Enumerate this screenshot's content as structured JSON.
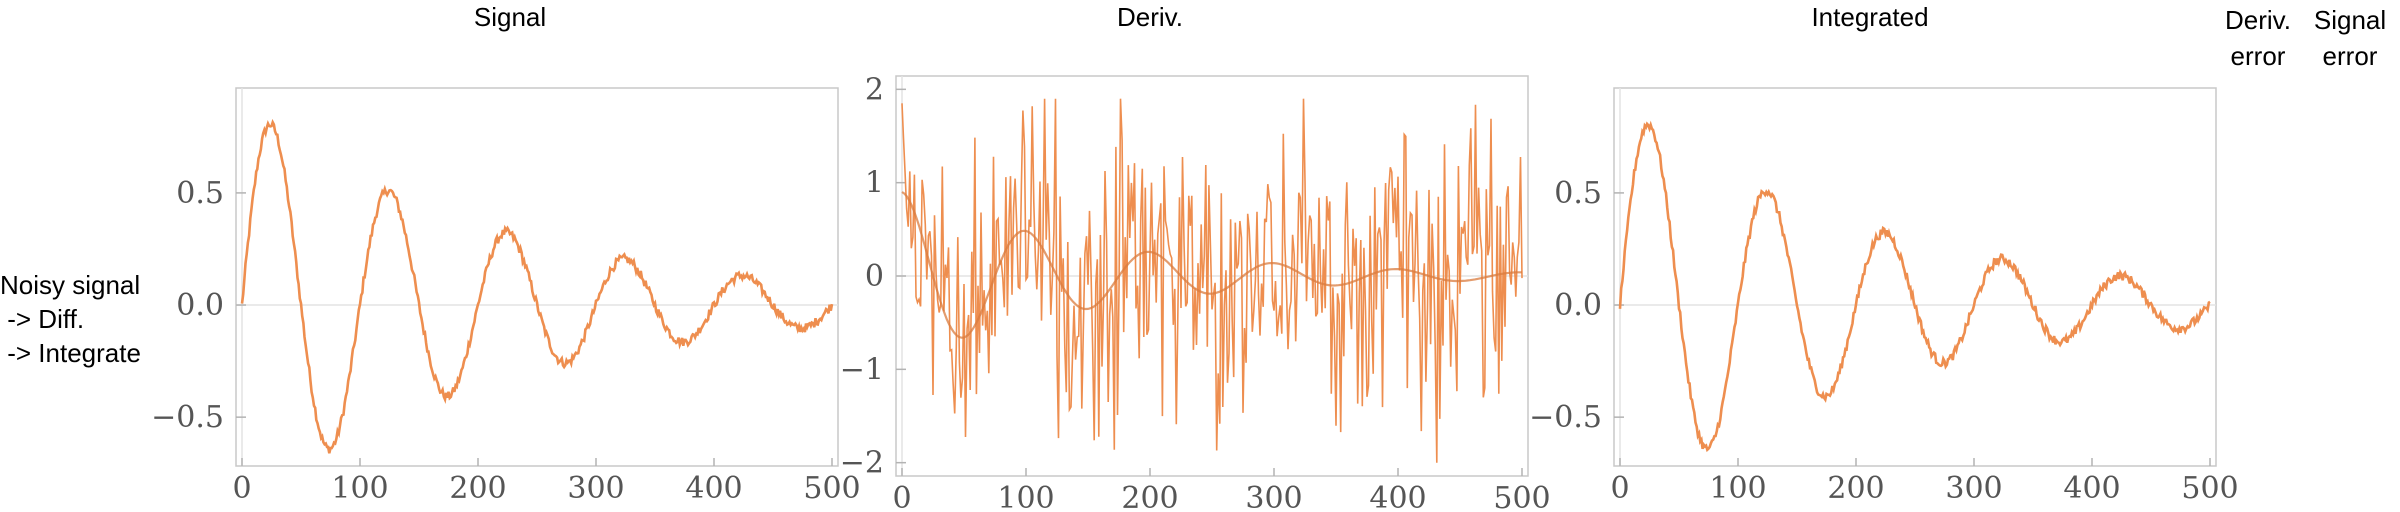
{
  "row_label_lines": [
    "Noisy signal",
    " -> Diff.",
    " -> Integrate"
  ],
  "column_headers": [
    "Signal",
    "Deriv.",
    "Integrated",
    "Deriv.\nerror",
    "Signal\nerror"
  ],
  "colors": {
    "series": "#ee8e4f",
    "smooth": "#d97b3e",
    "axis": "#b3b3b3",
    "frame": "#c8c8c8",
    "tick_text": "#555555"
  },
  "chart_data": [
    {
      "type": "line",
      "title": "Signal",
      "xlim": [
        0,
        500
      ],
      "ylim": [
        -0.7,
        0.95
      ],
      "xticks": [
        0,
        100,
        200,
        300,
        400,
        500
      ],
      "yticks": [
        -0.5,
        0.0,
        0.5
      ],
      "ytick_labels": [
        "-0.5",
        "0.0",
        "0.5"
      ],
      "series": [
        {
          "function": "0.9*exp(-x/220)*sin(2*pi*x/100)",
          "noise": 0.02
        }
      ]
    },
    {
      "type": "line",
      "title": "Deriv.",
      "xlim": [
        0,
        500
      ],
      "ylim": [
        -2.1,
        2.1
      ],
      "xticks": [
        0,
        100,
        200,
        300,
        400,
        500
      ],
      "yticks": [
        -2,
        -1,
        0,
        1,
        2
      ],
      "ytick_labels": [
        "-2",
        "-1",
        "0",
        "1",
        "2"
      ],
      "series": [
        {
          "function": "noisy derivative",
          "noise": 0.7,
          "range": [
            -2.0,
            1.9
          ]
        },
        {
          "function": "0.9*exp(-x/160)*cos(2*pi*x/100) (smooth)",
          "noise": 0
        }
      ]
    },
    {
      "type": "line",
      "title": "Integrated",
      "xlim": [
        0,
        500
      ],
      "ylim": [
        -0.7,
        0.95
      ],
      "xticks": [
        0,
        100,
        200,
        300,
        400,
        500
      ],
      "yticks": [
        -0.5,
        0.0,
        0.5
      ],
      "ytick_labels": [
        "-0.5",
        "0.0",
        "0.5"
      ],
      "series": [
        {
          "function": "0.9*exp(-x/220)*sin(2*pi*x/100)",
          "noise": 0.02
        }
      ]
    }
  ]
}
